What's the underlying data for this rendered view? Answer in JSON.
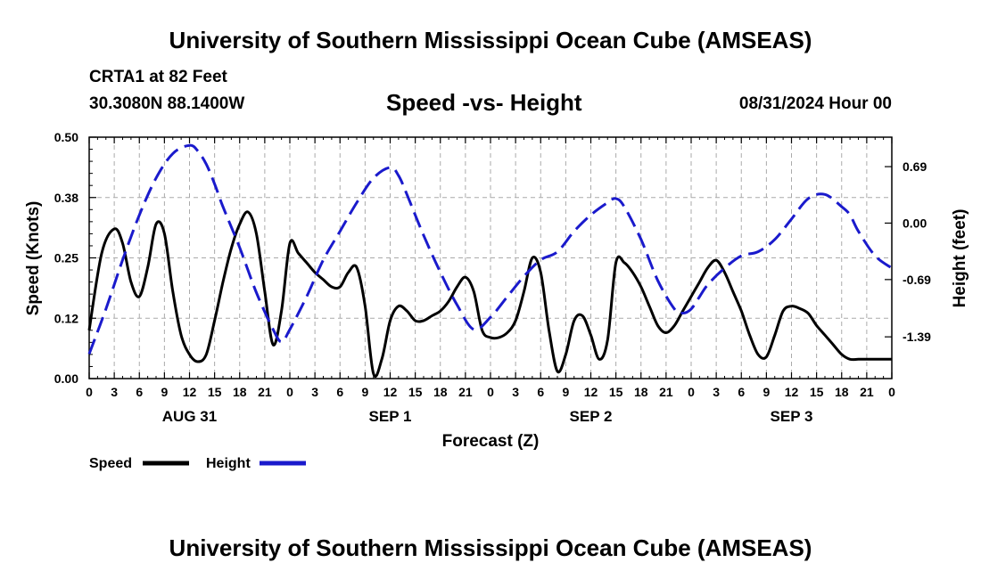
{
  "page_title": "University of Southern Mississippi Ocean Cube (AMSEAS)",
  "station": {
    "name": "CRTA1 at 82 Feet",
    "coords": "30.3080N  88.1400W",
    "datetime": "08/31/2024 Hour 00"
  },
  "chart_data": {
    "type": "line",
    "title": "Speed -vs- Height",
    "xlabel": "Forecast (Z)",
    "ylabel_left": "Speed (Knots)",
    "ylabel_right": "Height (feet)",
    "x_range_hours": [
      0,
      96
    ],
    "ylim_left": [
      0,
      0.5
    ],
    "ylim_right": [
      -1.9,
      1.05
    ],
    "left_ticks": [
      "0.00",
      "0.12",
      "0.25",
      "0.38",
      "0.50"
    ],
    "left_tick_values": [
      0,
      0.125,
      0.25,
      0.375,
      0.5
    ],
    "right_ticks": [
      "-1.39",
      "-0.69",
      "0.00",
      "0.69"
    ],
    "right_tick_values": [
      -1.39,
      -0.69,
      0.0,
      0.69
    ],
    "hour_ticks": [
      "0",
      "3",
      "6",
      "9",
      "12",
      "15",
      "18",
      "21",
      "0",
      "3",
      "6",
      "9",
      "12",
      "15",
      "18",
      "21",
      "0",
      "3",
      "6",
      "9",
      "12",
      "15",
      "18",
      "21",
      "0",
      "3",
      "6",
      "9",
      "12",
      "15",
      "18",
      "21",
      "0"
    ],
    "day_labels": [
      {
        "label": "AUG 31",
        "hour": 12
      },
      {
        "label": "SEP 1",
        "hour": 36
      },
      {
        "label": "SEP 2",
        "hour": 60
      },
      {
        "label": "SEP 3",
        "hour": 84
      }
    ],
    "series": [
      {
        "name": "Speed",
        "axis": "left",
        "color": "#000000",
        "dash": "solid",
        "x": [
          0,
          1.5,
          3,
          4,
          5,
          6,
          7,
          8,
          9,
          10,
          11,
          12,
          13,
          14,
          15,
          16,
          17,
          18,
          19,
          20,
          21,
          22,
          23,
          24,
          25,
          26,
          27,
          28,
          29,
          30,
          31,
          32,
          33,
          34,
          35,
          36,
          37,
          38,
          39,
          40,
          41,
          42,
          43,
          44,
          45,
          46,
          47,
          48,
          49,
          50,
          51,
          52,
          53,
          54,
          55,
          56,
          57,
          58,
          59,
          60,
          61,
          62,
          63,
          64,
          65,
          66,
          67,
          68,
          69,
          70,
          71,
          72,
          73,
          74,
          75,
          76,
          77,
          78,
          79,
          80,
          81,
          82,
          83,
          84,
          85,
          86,
          87,
          88,
          89,
          90,
          91,
          92,
          93,
          94,
          95,
          96
        ],
        "values": [
          0.1,
          0.26,
          0.31,
          0.28,
          0.2,
          0.17,
          0.23,
          0.32,
          0.3,
          0.18,
          0.09,
          0.05,
          0.035,
          0.05,
          0.12,
          0.2,
          0.27,
          0.32,
          0.345,
          0.3,
          0.18,
          0.07,
          0.14,
          0.28,
          0.26,
          0.24,
          0.22,
          0.205,
          0.19,
          0.19,
          0.22,
          0.23,
          0.15,
          0.01,
          0.04,
          0.12,
          0.15,
          0.14,
          0.12,
          0.12,
          0.13,
          0.14,
          0.16,
          0.19,
          0.21,
          0.18,
          0.1,
          0.085,
          0.085,
          0.095,
          0.12,
          0.18,
          0.25,
          0.22,
          0.1,
          0.015,
          0.05,
          0.12,
          0.13,
          0.09,
          0.04,
          0.08,
          0.24,
          0.24,
          0.22,
          0.19,
          0.15,
          0.11,
          0.095,
          0.11,
          0.14,
          0.17,
          0.2,
          0.23,
          0.245,
          0.22,
          0.18,
          0.14,
          0.09,
          0.05,
          0.045,
          0.09,
          0.14,
          0.15,
          0.145,
          0.135,
          0.11,
          0.09,
          0.07,
          0.05,
          0.04,
          0.04,
          0.04,
          0.04,
          0.04,
          0.04
        ]
      },
      {
        "name": "Height",
        "axis": "right",
        "color": "#1a1acc",
        "dash": "dashed",
        "x": [
          0,
          2,
          4,
          6,
          8,
          10,
          12,
          13,
          14,
          15,
          16,
          18,
          20,
          22,
          23,
          24,
          26,
          28,
          30,
          32,
          34,
          36,
          37,
          38,
          40,
          42,
          44,
          46,
          48,
          50,
          52,
          54,
          56,
          58,
          60,
          62,
          63,
          64,
          66,
          68,
          70,
          71,
          72,
          73,
          74,
          76,
          78,
          80,
          82,
          84,
          86,
          88,
          90,
          91,
          92,
          94,
          96
        ],
        "values": [
          -1.6,
          -1.05,
          -0.45,
          0.1,
          0.55,
          0.85,
          0.95,
          0.88,
          0.72,
          0.48,
          0.2,
          -0.3,
          -0.85,
          -1.3,
          -1.45,
          -1.3,
          -0.9,
          -0.45,
          -0.1,
          0.25,
          0.55,
          0.68,
          0.58,
          0.35,
          -0.15,
          -0.6,
          -1.0,
          -1.3,
          -1.15,
          -0.9,
          -0.65,
          -0.45,
          -0.35,
          -0.1,
          0.1,
          0.25,
          0.3,
          0.2,
          -0.2,
          -0.7,
          -1.05,
          -1.1,
          -1.05,
          -0.9,
          -0.75,
          -0.55,
          -0.4,
          -0.35,
          -0.2,
          0.05,
          0.3,
          0.35,
          0.2,
          0.1,
          -0.1,
          -0.4,
          -0.55
        ]
      }
    ]
  },
  "legend": {
    "speed_label": "Speed",
    "height_label": "Height"
  }
}
